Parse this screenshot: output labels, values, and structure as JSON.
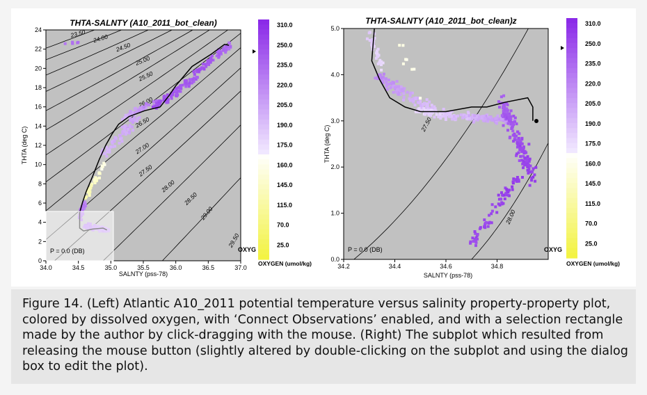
{
  "colors": {
    "plot_bg": "#c1c1c1",
    "contour": "#000000",
    "oxygen_high": "#8b2be8",
    "oxygen_mid": "#f2eaff",
    "oxygen_low": "#f2f23a"
  },
  "caption": "Figure 14. (Left) Atlantic A10_2011 potential temperature versus salinity property-property plot, colored by dissolved oxygen, with ‘Connect Observations’ enabled, and with a selection rectangle made by the author by click-dragging with the mouse. (Right) The subplot which resulted from releasing the mouse button (slightly altered by double-clicking on the subplot and using the dialog box to edit the plot).",
  "colorbar": {
    "labels": [
      "310.0",
      "250.0",
      "235.0",
      "220.0",
      "205.0",
      "190.0",
      "175.0",
      "160.0",
      "145.0",
      "115.0",
      "70.0",
      "25.0"
    ],
    "top_color": "#8b2be8",
    "mid_color": "#f2eaff",
    "bottom_color": "#f2f23a"
  },
  "chart_data": [
    {
      "type": "scatter",
      "title": "THTA-SALNTY (A10_2011_bot_clean)",
      "xlabel": "SALNTY (pss-78)",
      "ylabel": "THTA (deg C)",
      "xlim": [
        34.0,
        37.0
      ],
      "ylim": [
        0,
        24
      ],
      "xticks": [
        "34.0",
        "34.5",
        "35.0",
        "35.5",
        "36.0",
        "36.5",
        "37.0"
      ],
      "yticks": [
        "0",
        "2",
        "4",
        "6",
        "8",
        "10",
        "12",
        "14",
        "16",
        "18",
        "20",
        "22",
        "24"
      ],
      "colorbar_title": "OXYGEN (umol/kg)",
      "colorbar_var": "OXYG",
      "pressure_label": "P = 0.0 (DB)",
      "density_contours": [
        "23.50",
        "24.00",
        "24.50",
        "25.00",
        "25.50",
        "26.00",
        "26.50",
        "27.00",
        "27.50",
        "28.00",
        "28.50",
        "29.00",
        "29.50"
      ],
      "selection_box": {
        "x": [
          34.0,
          35.0
        ],
        "y": [
          0,
          5.0
        ]
      },
      "connect_line": {
        "x": [
          34.94,
          34.88,
          34.72,
          34.58,
          34.52,
          34.52,
          34.56,
          34.62,
          34.72,
          34.82,
          34.92,
          35.02,
          35.12,
          35.28,
          35.52,
          35.76,
          35.9,
          36.0,
          36.25,
          36.55,
          36.75,
          36.82
        ],
        "y": [
          3.2,
          3.4,
          3.3,
          3.1,
          3.4,
          5.0,
          6.0,
          7.2,
          8.8,
          10.5,
          12.0,
          13.2,
          14.2,
          15.0,
          15.6,
          16.0,
          17.2,
          18.2,
          20.2,
          21.5,
          22.5,
          22.4
        ]
      },
      "series": [
        {
          "name": "OXYGEN",
          "x": [
            34.3,
            34.55,
            34.9,
            34.7,
            35.1,
            35.55,
            35.9,
            36.3,
            36.7
          ],
          "y": [
            22.6,
            5.6,
            3.2,
            8.0,
            14.5,
            16.0,
            17.5,
            20.4,
            22.4
          ]
        }
      ]
    },
    {
      "type": "scatter",
      "title": "THTA-SALNTY (A10_2011_bot_clean)z",
      "xlabel": "SALNTY (pss-78)",
      "ylabel": "THTA (deg C)",
      "xlim": [
        34.2,
        35.0
      ],
      "ylim": [
        0,
        5.0
      ],
      "xticks": [
        "34.2",
        "34.4",
        "34.6",
        "34.8"
      ],
      "yticks": [
        "0.0",
        "1.0",
        "2.0",
        "3.0",
        "4.0",
        "5.0"
      ],
      "colorbar_title": "OXYGEN (umol/kg)",
      "colorbar_var": "OXYG",
      "pressure_label": "P = 0.0 (DB)",
      "density_contours": [
        "27.50",
        "28.00"
      ],
      "connect_line": {
        "x": [
          34.32,
          34.31,
          34.34,
          34.38,
          34.44,
          34.5,
          34.6,
          34.7,
          34.76,
          34.83,
          34.92,
          34.94,
          34.94
        ],
        "y": [
          5.0,
          4.3,
          3.9,
          3.5,
          3.3,
          3.2,
          3.2,
          3.3,
          3.3,
          3.4,
          3.5,
          3.3,
          3.0
        ]
      },
      "series": [
        {
          "name": "OXYGEN",
          "x": [
            34.4,
            34.55,
            34.7,
            34.85,
            34.9,
            34.8,
            34.72
          ],
          "y": [
            3.6,
            3.1,
            3.0,
            3.0,
            2.0,
            1.5,
            0.5
          ]
        }
      ]
    }
  ]
}
